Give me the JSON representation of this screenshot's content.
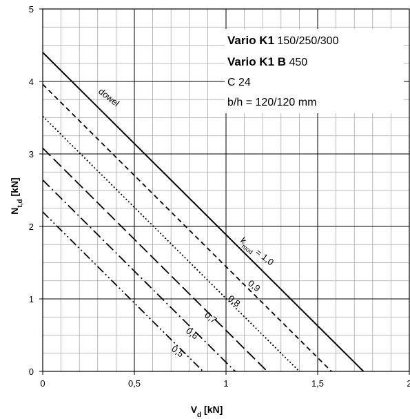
{
  "chart_data": {
    "type": "line",
    "xlabel": "V",
    "xlabel_sub": "d",
    "xlabel_unit": " [kN]",
    "ylabel": "N",
    "ylabel_sub": "t,d",
    "ylabel_unit": " [kN]",
    "xlim": [
      0,
      2
    ],
    "ylim": [
      0,
      5
    ],
    "x_ticks": [
      0,
      0.5,
      1,
      1.5,
      2
    ],
    "x_tick_labels": [
      "0",
      "0,5",
      "1",
      "1,5",
      "2"
    ],
    "y_ticks": [
      0,
      1,
      2,
      3,
      4,
      5
    ],
    "y_tick_labels": [
      "0",
      "1",
      "2",
      "3",
      "4",
      "5"
    ],
    "grid": true,
    "minor_grid_x": 0.1,
    "minor_grid_y": 0.25,
    "series": [
      {
        "name": "1,0",
        "dash": "solid",
        "x": [
          0,
          1.75
        ],
        "y": [
          4.4,
          0
        ]
      },
      {
        "name": "0,9",
        "dash": "dashed",
        "x": [
          0,
          1.575
        ],
        "y": [
          3.96,
          0
        ]
      },
      {
        "name": "0,8",
        "dash": "dotted",
        "x": [
          0,
          1.4
        ],
        "y": [
          3.52,
          0
        ]
      },
      {
        "name": "0,7",
        "dash": "longdash",
        "x": [
          0,
          1.225
        ],
        "y": [
          3.08,
          0
        ]
      },
      {
        "name": "0,6",
        "dash": "dashdot",
        "x": [
          0,
          1.05
        ],
        "y": [
          2.64,
          0
        ]
      },
      {
        "name": "0,5",
        "dash": "dashdotdot",
        "x": [
          0,
          0.875
        ],
        "y": [
          2.2,
          0
        ]
      }
    ],
    "annotations": {
      "dowel": "dowel",
      "kmod_prefix": "k",
      "kmod_sub": "mod",
      "kmod_eq": " = 1,0",
      "k09": "0,9",
      "k08": "0,8",
      "k07": "0,7",
      "k06": "0,6",
      "k05": "0,5"
    },
    "info_box": {
      "line1_bold": "Vario K1",
      "line1_rest": " 150/250/300",
      "line2_bold": "Vario K1 B",
      "line2_rest": " 450",
      "line3": "C 24",
      "line4": "b/h = 120/120 mm"
    }
  }
}
